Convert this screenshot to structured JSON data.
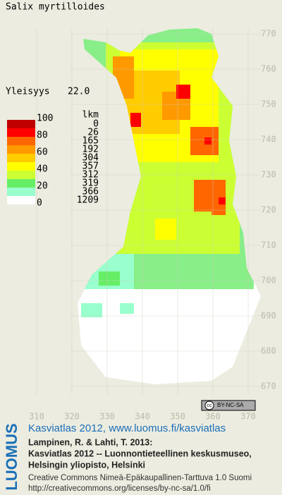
{
  "map": {
    "title": "Salix myrtilloides",
    "frequency_label": "Yleisyys",
    "frequency": "22.0",
    "legend": {
      "count_header": "lkm",
      "ticks": [
        100,
        80,
        60,
        40,
        20,
        0
      ],
      "classes": [
        {
          "color": "#c00000",
          "count": 0
        },
        {
          "color": "#ff0000",
          "count": 26
        },
        {
          "color": "#ff6600",
          "count": 165
        },
        {
          "color": "#ff9900",
          "count": 192
        },
        {
          "color": "#ffcc00",
          "count": 304
        },
        {
          "color": "#ffff00",
          "count": 357
        },
        {
          "color": "#ccff33",
          "count": 312
        },
        {
          "color": "#66ee66",
          "count": 319
        },
        {
          "color": "#99ffcc",
          "count": 366
        },
        {
          "color": "#ffffff",
          "count": 1209
        }
      ]
    },
    "xticks": [
      310,
      320,
      330,
      340,
      350,
      360,
      370
    ],
    "xlim": [
      310,
      370
    ],
    "yticks": [
      770,
      760,
      750,
      740,
      730,
      720,
      710,
      700,
      690,
      680,
      670
    ],
    "ylim": [
      670,
      770
    ]
  },
  "badge": {
    "icon": "cc",
    "license": "BY-NC-SA"
  },
  "credits": {
    "logo": "LUOMUS",
    "link": "Kasviatlas 2012, www.luomus.fi/kasviatlas",
    "citation": [
      "Lampinen, R. & Lahti, T. 2013:",
      "Kasviatlas 2012 -- Luonnontieteellinen keskusmuseo,",
      "Helsingin yliopisto, Helsinki"
    ],
    "license": [
      "Creative Commons Nimeä-Epäkaupallinen-Tarttuva 1.0 Suomi",
      "http://creativecommons.org/licenses/by-nc-sa/1.0/fi"
    ]
  }
}
